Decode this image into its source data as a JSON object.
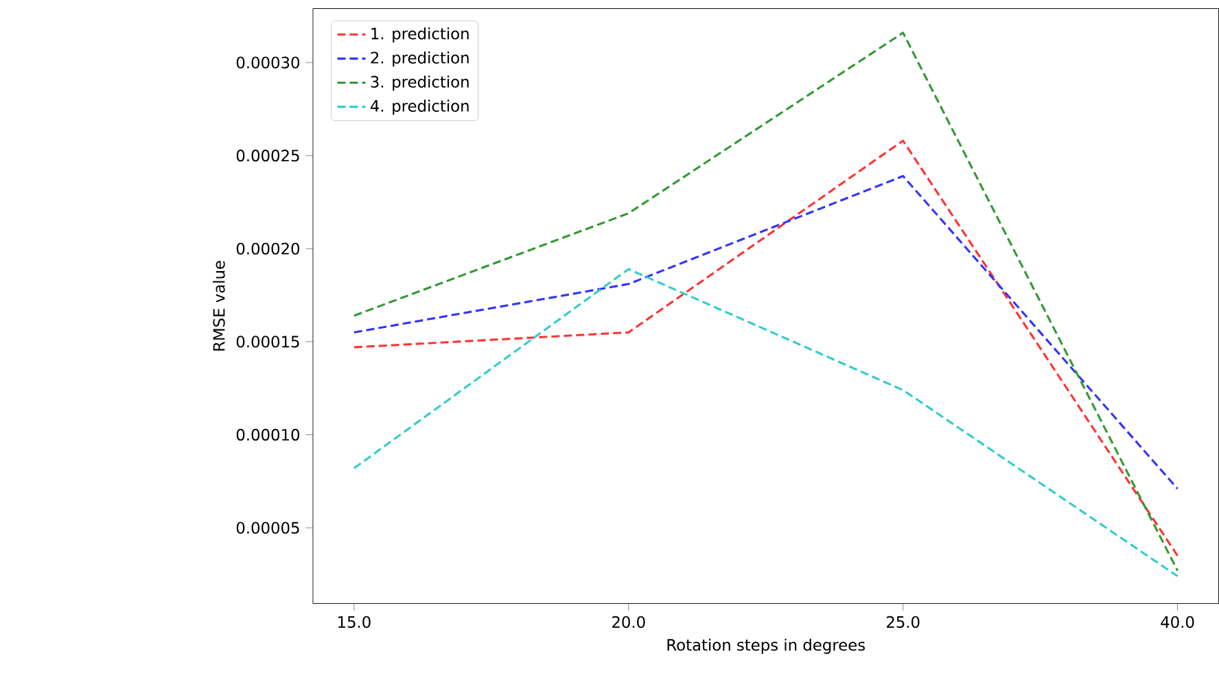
{
  "chart_data": {
    "type": "line",
    "xlabel": "Rotation steps in degrees",
    "ylabel": "RMSE value",
    "categories": [
      "15.0",
      "20.0",
      "25.0",
      "40.0"
    ],
    "series": [
      {
        "name": "1. prediction",
        "color": "#ff3333",
        "values": [
          0.000147,
          0.000155,
          0.000258,
          3.5e-05
        ]
      },
      {
        "name": "2. prediction",
        "color": "#3333ff",
        "values": [
          0.000155,
          0.000181,
          0.000239,
          7.1e-05
        ]
      },
      {
        "name": "3. prediction",
        "color": "#339933",
        "values": [
          0.000164,
          0.000219,
          0.000316,
          2.7e-05
        ]
      },
      {
        "name": "4. prediction",
        "color": "#33cccc",
        "values": [
          8.2e-05,
          0.000189,
          0.000124,
          2.4e-05
        ]
      }
    ],
    "ylim": [
      9.3e-06,
      0.000329
    ],
    "yticks": [
      {
        "value": 5e-05,
        "label": "0.00005"
      },
      {
        "value": 0.0001,
        "label": "0.00010"
      },
      {
        "value": 0.00015,
        "label": "0.00015"
      },
      {
        "value": 0.0002,
        "label": "0.00020"
      },
      {
        "value": 0.00025,
        "label": "0.00025"
      },
      {
        "value": 0.0003,
        "label": "0.00030"
      }
    ],
    "legend": "top left",
    "line_style": "dashed",
    "marker": "none",
    "grid": false
  }
}
